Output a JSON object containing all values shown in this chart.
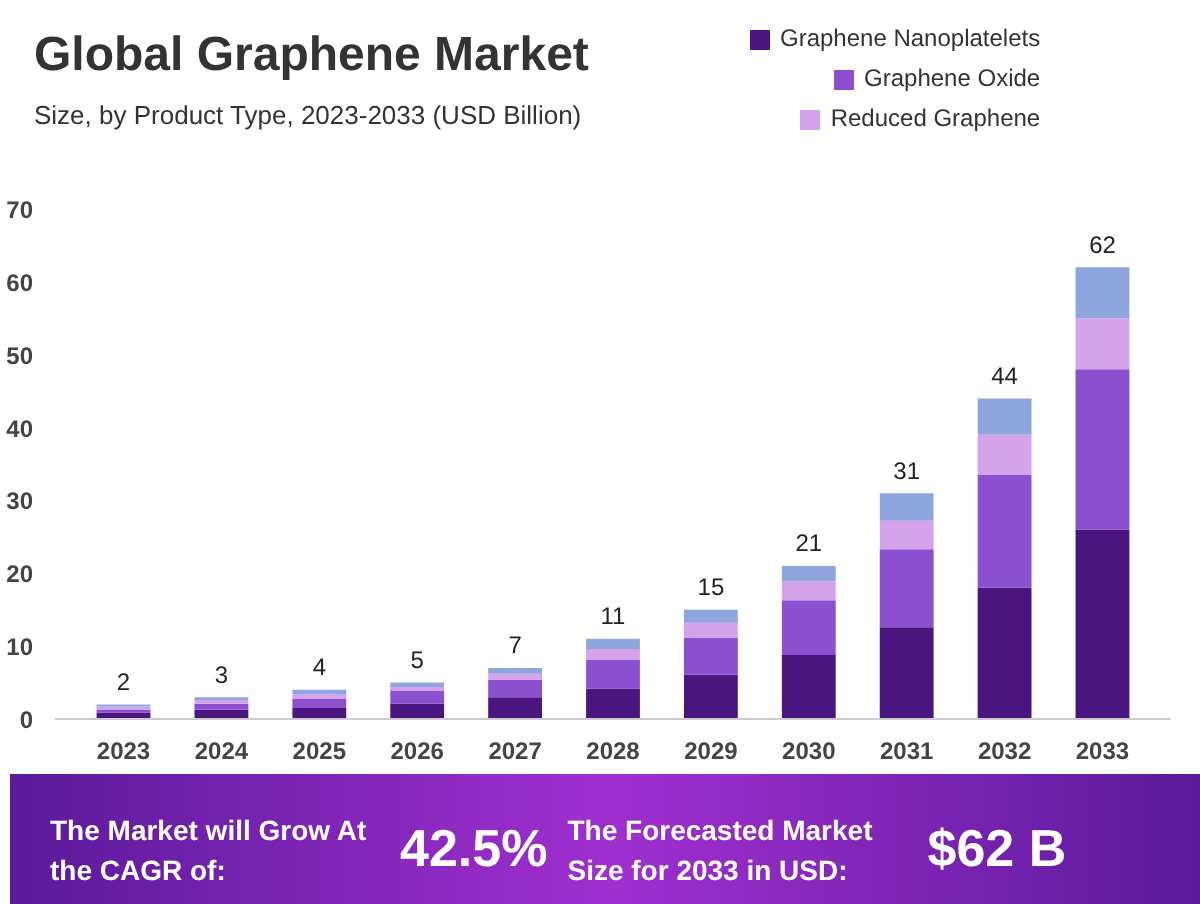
{
  "chart_data": {
    "type": "bar",
    "stacked": true,
    "title": "Global Graphene Market",
    "subtitle": "Size, by Product Type, 2023-2033 (USD Billion)",
    "categories": [
      "2023",
      "2024",
      "2025",
      "2026",
      "2027",
      "2028",
      "2029",
      "2030",
      "2031",
      "2032",
      "2033"
    ],
    "series": [
      {
        "name": "Graphene Nanoplatelets",
        "color": "#4b1580",
        "values": [
          0.9,
          1.3,
          1.5,
          2.1,
          3.0,
          4.2,
          6.1,
          8.8,
          12.6,
          18,
          26
        ]
      },
      {
        "name": "Graphene Oxide",
        "color": "#8b4fcf",
        "values": [
          0.4,
          0.8,
          1.3,
          1.8,
          2.4,
          3.9,
          5.1,
          7.5,
          10.7,
          15.5,
          22
        ]
      },
      {
        "name": "Reduced Graphene",
        "color": "#d4a3ec",
        "values": [
          0.4,
          0.5,
          0.6,
          0.5,
          0.8,
          1.5,
          2.0,
          2.6,
          3.9,
          5.5,
          7
        ]
      },
      {
        "color": "#8fa5dd",
        "values": [
          0.3,
          0.4,
          0.6,
          0.6,
          0.8,
          1.4,
          1.8,
          2.1,
          3.8,
          5,
          7
        ]
      }
    ],
    "totals": [
      "2",
      "3",
      "4",
      "5",
      "7",
      "11",
      "15",
      "21",
      "31",
      "44",
      "62"
    ],
    "ylim": [
      0,
      70
    ],
    "yticks": [
      0,
      10,
      20,
      30,
      40,
      50,
      60,
      70
    ],
    "grid": false,
    "legend": "top right",
    "annotations": [
      "The Market will Grow At the CAGR of:",
      "42.5%",
      "The Forecasted Market Size for 2033 in USD:",
      "$62 B"
    ]
  }
}
